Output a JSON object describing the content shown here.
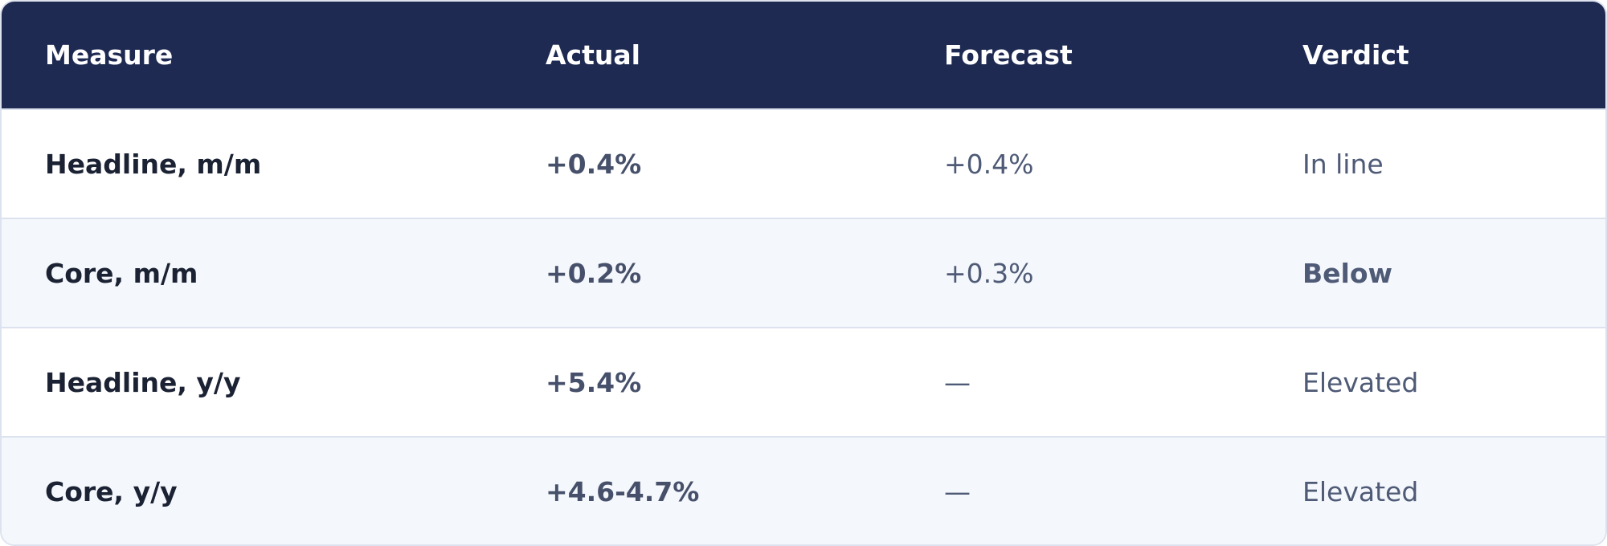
{
  "header": {
    "columns": [
      "Measure",
      "Actual",
      "Forecast",
      "Verdict"
    ]
  },
  "table": {
    "rows": [
      [
        "Headline, m/m",
        "+0.4%",
        "+0.4%",
        "In line"
      ],
      [
        "Core, m/m",
        "+0.2%",
        "+0.3%",
        "Below"
      ],
      [
        "Headline, y/y",
        "+5.4%",
        "—",
        "Elevated"
      ],
      [
        "Core, y/y",
        "+4.6-4.7%",
        "—",
        "Elevated"
      ]
    ]
  }
}
